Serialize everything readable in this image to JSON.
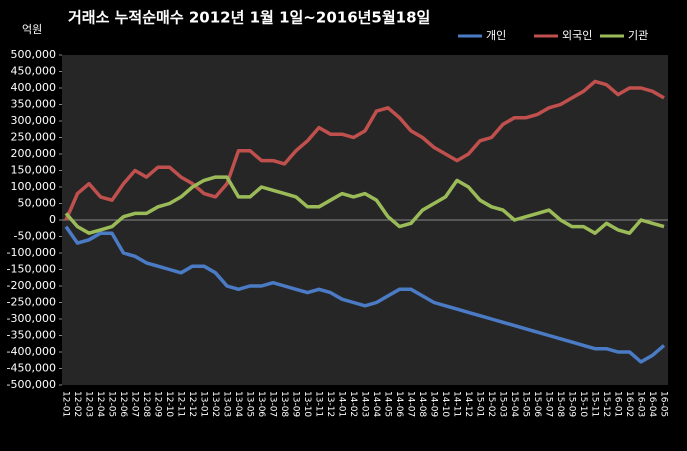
{
  "chart_data": {
    "type": "line",
    "title": "거래소  누적순매수 2012년 1월 1일~2016년5월18일",
    "y_label": "억원",
    "categories": [
      "12-01",
      "12-02",
      "12-03",
      "12-04",
      "12-05",
      "12-06",
      "12-07",
      "12-08",
      "12-09",
      "12-10",
      "12-11",
      "12-12",
      "13-01",
      "13-02",
      "13-03",
      "13-04",
      "13-05",
      "13-06",
      "13-07",
      "13-08",
      "13-09",
      "13-10",
      "13-11",
      "13-12",
      "14-01",
      "14-02",
      "14-03",
      "14-04",
      "14-05",
      "14-06",
      "14-07",
      "14-08",
      "14-09",
      "14-10",
      "14-11",
      "14-12",
      "15-01",
      "15-02",
      "15-03",
      "15-04",
      "15-05",
      "15-06",
      "15-07",
      "15-08",
      "15-09",
      "15-10",
      "15-11",
      "15-12",
      "16-01",
      "16-02",
      "16-03",
      "16-04",
      "16-05"
    ],
    "series": [
      {
        "name": "개인",
        "color": "#4a7bc4",
        "values": [
          -20000,
          -70000,
          -60000,
          -40000,
          -40000,
          -100000,
          -110000,
          -130000,
          -140000,
          -150000,
          -160000,
          -140000,
          -140000,
          -160000,
          -200000,
          -210000,
          -200000,
          -200000,
          -190000,
          -200000,
          -210000,
          -220000,
          -210000,
          -220000,
          -240000,
          -250000,
          -260000,
          -250000,
          -230000,
          -210000,
          -210000,
          -230000,
          -250000,
          -260000,
          -270000,
          -280000,
          -290000,
          -300000,
          -310000,
          -320000,
          -330000,
          -340000,
          -350000,
          -360000,
          -370000,
          -380000,
          -390000,
          -390000,
          -400000,
          -400000,
          -430000,
          -410000,
          -380000
        ]
      },
      {
        "name": "외국인",
        "color": "#c0504d",
        "values": [
          0,
          80000,
          110000,
          70000,
          60000,
          110000,
          150000,
          130000,
          160000,
          160000,
          130000,
          110000,
          80000,
          70000,
          110000,
          210000,
          210000,
          180000,
          180000,
          170000,
          210000,
          240000,
          280000,
          260000,
          260000,
          250000,
          270000,
          330000,
          340000,
          310000,
          270000,
          250000,
          220000,
          200000,
          180000,
          200000,
          240000,
          250000,
          290000,
          310000,
          310000,
          320000,
          340000,
          350000,
          370000,
          390000,
          420000,
          410000,
          380000,
          400000,
          400000,
          390000,
          370000
        ]
      },
      {
        "name": "기관",
        "color": "#9bbb59",
        "values": [
          20000,
          -20000,
          -40000,
          -30000,
          -20000,
          10000,
          20000,
          20000,
          40000,
          50000,
          70000,
          100000,
          120000,
          130000,
          130000,
          70000,
          70000,
          100000,
          90000,
          80000,
          70000,
          40000,
          40000,
          60000,
          80000,
          70000,
          80000,
          60000,
          10000,
          -20000,
          -10000,
          30000,
          50000,
          70000,
          120000,
          100000,
          60000,
          40000,
          30000,
          0,
          10000,
          20000,
          30000,
          0,
          -20000,
          -20000,
          -40000,
          -10000,
          -30000,
          -40000,
          0,
          -10000,
          -20000
        ]
      }
    ],
    "ylim": [
      -500000,
      500000
    ],
    "yticks": [
      {
        "value": -500000,
        "label": "-500,000"
      },
      {
        "value": -450000,
        "label": "-450,000"
      },
      {
        "value": -400000,
        "label": "-400,000"
      },
      {
        "value": -350000,
        "label": "-350,000"
      },
      {
        "value": -300000,
        "label": "-300,000"
      },
      {
        "value": -250000,
        "label": "-250,000"
      },
      {
        "value": -200000,
        "label": "-200,000"
      },
      {
        "value": -150000,
        "label": "-150,000"
      },
      {
        "value": -100000,
        "label": "-100,000"
      },
      {
        "value": -50000,
        "label": "-50,000"
      },
      0,
      {
        "value": 50000,
        "label": "50,000"
      },
      {
        "value": 100000,
        "label": "100,000"
      },
      {
        "value": 150000,
        "label": "150,000"
      },
      {
        "value": 200000,
        "label": "200,000"
      },
      {
        "value": 250000,
        "label": "250,000"
      },
      {
        "value": 300000,
        "label": "300,000"
      },
      {
        "value": 350000,
        "label": "350,000"
      },
      {
        "value": 400000,
        "label": "400,000"
      },
      {
        "value": 450000,
        "label": "450,000"
      },
      {
        "value": 500000,
        "label": "500,000"
      }
    ],
    "legend": "top-right",
    "plot_background": "#262626"
  }
}
